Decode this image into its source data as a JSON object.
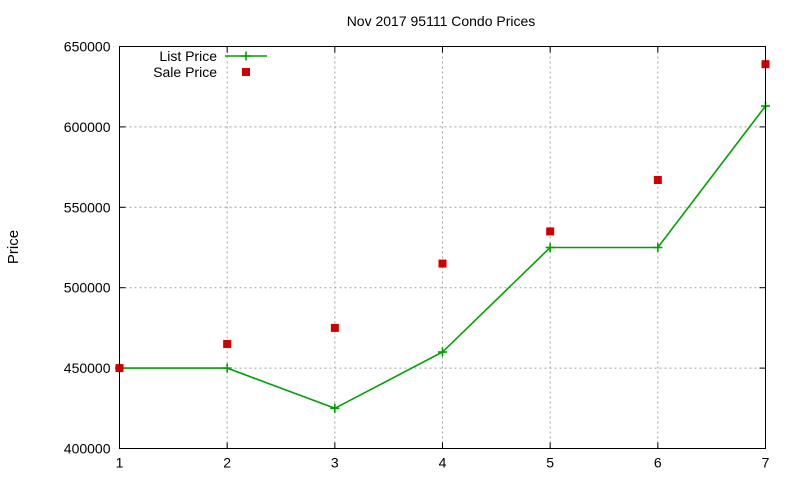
{
  "chart_data": {
    "type": "line",
    "title": "Nov 2017 95111 Condo Prices",
    "xlabel": "",
    "ylabel": "Price",
    "x": [
      1,
      2,
      3,
      4,
      5,
      6,
      7
    ],
    "xlim": [
      1,
      7
    ],
    "ylim": [
      400000,
      650000
    ],
    "xticks": [
      "1",
      "2",
      "3",
      "4",
      "5",
      "6",
      "7"
    ],
    "yticks": [
      "400000",
      "450000",
      "500000",
      "550000",
      "600000",
      "650000"
    ],
    "grid": true,
    "legend_position": "top-left",
    "series": [
      {
        "name": "List Price",
        "style": "line-with-plus-markers",
        "color": "#00a000",
        "values": [
          450000,
          450000,
          425000,
          460000,
          525000,
          525000,
          613000
        ]
      },
      {
        "name": "Sale Price",
        "style": "square-points",
        "color": "#cc0000",
        "values": [
          450000,
          465000,
          475000,
          515000,
          535000,
          567000,
          639000
        ]
      }
    ]
  }
}
